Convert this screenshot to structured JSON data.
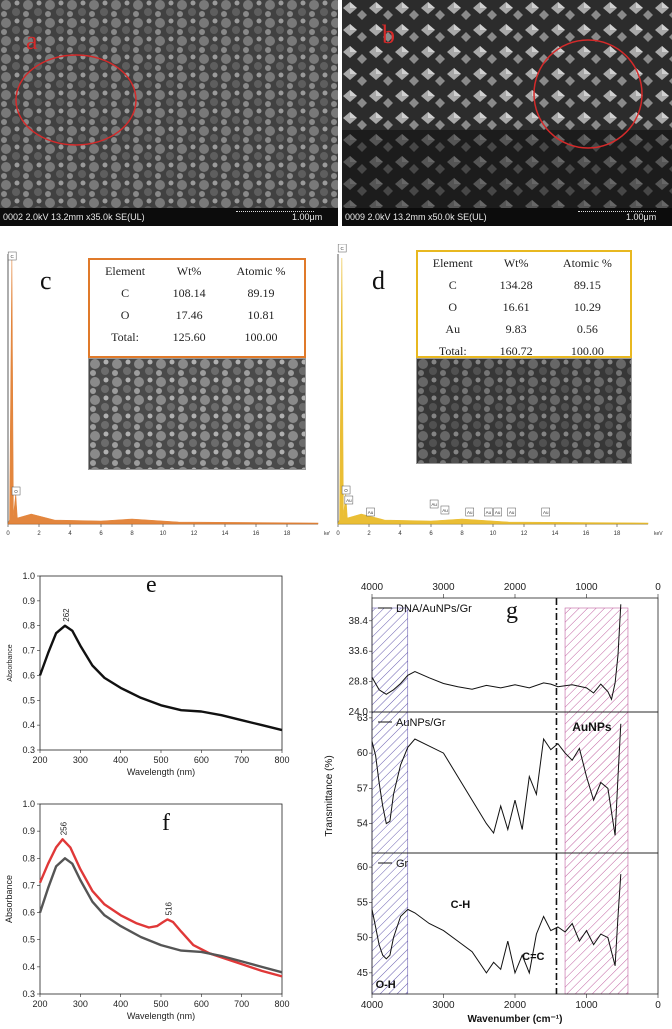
{
  "panels": {
    "a": {
      "letter": "a",
      "footer": "0002 2.0kV 13.2mm x35.0k SE(UL)",
      "scale": "1.00μm"
    },
    "b": {
      "letter": "b",
      "footer": "0009 2.0kV 13.2mm x50.0k SE(UL)",
      "scale": "1.00μm"
    },
    "c": {
      "letter": "c"
    },
    "d": {
      "letter": "d"
    },
    "e": {
      "letter": "e"
    },
    "f": {
      "letter": "f"
    },
    "g": {
      "letter": "g"
    }
  },
  "colors": {
    "orange": "#e07a2a",
    "gold": "#e8b820",
    "red": "#e03838",
    "dark": "#555555",
    "hatch_blue": "#6a5fb0",
    "hatch_pink": "#c060a0"
  },
  "eds_c": {
    "headers": [
      "Element",
      "Wt%",
      "Atomic %"
    ],
    "rows": [
      [
        "C",
        "108.14",
        "89.19"
      ],
      [
        "O",
        "17.46",
        "10.81"
      ],
      [
        "Total:",
        "125.60",
        "100.00"
      ]
    ],
    "peak_labels": [
      "C",
      "O"
    ],
    "x_ticks": [
      "0",
      "2",
      "4",
      "6",
      "8",
      "10",
      "12",
      "14",
      "16",
      "18"
    ],
    "x_unit": "keV"
  },
  "eds_d": {
    "headers": [
      "Element",
      "Wt%",
      "Atomic %"
    ],
    "rows": [
      [
        "C",
        "134.28",
        "89.15"
      ],
      [
        "O",
        "16.61",
        "10.29"
      ],
      [
        "Au",
        "9.83",
        "0.56"
      ],
      [
        "Total:",
        "160.72",
        "100.00"
      ]
    ],
    "peak_labels": [
      "C",
      "O",
      "Au",
      "Au",
      "Au",
      "Au",
      "Au",
      "Au",
      "Au",
      "Au",
      "Au"
    ],
    "x_ticks": [
      "0",
      "2",
      "4",
      "6",
      "8",
      "10",
      "12",
      "14",
      "16",
      "18"
    ],
    "x_unit": "keV"
  },
  "chart_data": [
    {
      "id": "e",
      "type": "line",
      "xlabel": "Wavelength (nm)",
      "ylabel": "Absorbance",
      "xlim": [
        200,
        800
      ],
      "ylim": [
        0.3,
        1.0
      ],
      "x_ticks": [
        200,
        300,
        400,
        500,
        600,
        700,
        800
      ],
      "y_ticks": [
        "0.3",
        "0.4",
        "0.5",
        "0.6",
        "0.7",
        "0.8",
        "0.9",
        "1.0"
      ],
      "peak_label": "262",
      "series": [
        {
          "color": "#111111",
          "x": [
            200,
            220,
            240,
            262,
            280,
            300,
            330,
            360,
            400,
            450,
            500,
            550,
            600,
            650,
            700,
            750,
            800
          ],
          "y": [
            0.6,
            0.69,
            0.77,
            0.8,
            0.78,
            0.72,
            0.64,
            0.59,
            0.55,
            0.51,
            0.48,
            0.46,
            0.455,
            0.44,
            0.42,
            0.4,
            0.38
          ]
        }
      ]
    },
    {
      "id": "f",
      "type": "line",
      "xlabel": "Wavelength (nm)",
      "ylabel": "Absorbance",
      "xlim": [
        200,
        800
      ],
      "ylim": [
        0.3,
        1.0
      ],
      "x_ticks": [
        200,
        300,
        400,
        500,
        600,
        700,
        800
      ],
      "y_ticks": [
        "0.3",
        "0.4",
        "0.5",
        "0.6",
        "0.7",
        "0.8",
        "0.9",
        "1.0"
      ],
      "peak_labels": [
        "256",
        "516"
      ],
      "series": [
        {
          "color": "#e03838",
          "x": [
            200,
            220,
            240,
            256,
            275,
            300,
            330,
            360,
            400,
            440,
            470,
            490,
            505,
            516,
            530,
            550,
            580,
            620,
            660,
            700,
            750,
            800
          ],
          "y": [
            0.71,
            0.78,
            0.84,
            0.87,
            0.84,
            0.76,
            0.68,
            0.63,
            0.59,
            0.56,
            0.545,
            0.55,
            0.565,
            0.575,
            0.565,
            0.53,
            0.48,
            0.45,
            0.43,
            0.41,
            0.385,
            0.365
          ]
        },
        {
          "color": "#555555",
          "x": [
            200,
            220,
            240,
            262,
            280,
            300,
            330,
            360,
            400,
            450,
            500,
            550,
            600,
            650,
            700,
            750,
            800
          ],
          "y": [
            0.6,
            0.69,
            0.77,
            0.8,
            0.78,
            0.72,
            0.64,
            0.59,
            0.55,
            0.51,
            0.48,
            0.46,
            0.455,
            0.44,
            0.42,
            0.4,
            0.38
          ]
        }
      ]
    },
    {
      "id": "g",
      "type": "line",
      "xlabel": "Wavenumber (cm⁻¹)",
      "ylabel": "Transmittance (%)",
      "xlim": [
        4000,
        0
      ],
      "x_ticks": [
        "4000",
        "3000",
        "2000",
        "1000",
        "0"
      ],
      "sub": [
        {
          "name": "DNA/AuNPs/Gr",
          "y_ticks": [
            "24.0",
            "28.8",
            "33.6",
            "38.4"
          ],
          "ylim": [
            24.0,
            42.0
          ],
          "x": [
            4000,
            3900,
            3800,
            3700,
            3600,
            3500,
            3400,
            3200,
            3000,
            2800,
            2600,
            2400,
            2200,
            2000,
            1800,
            1600,
            1500,
            1400,
            1200,
            1000,
            900,
            800,
            700,
            650,
            600,
            560,
            520
          ],
          "y": [
            29.5,
            27.5,
            26.8,
            27.5,
            28.5,
            29.8,
            30.4,
            29.4,
            28.5,
            28.0,
            27.6,
            28.2,
            27.8,
            28.3,
            27.8,
            28.6,
            28.4,
            28.0,
            28.3,
            27.8,
            27.0,
            28.4,
            27.2,
            26.0,
            28.6,
            33.0,
            41.0
          ]
        },
        {
          "name": "AuNPs/Gr",
          "y_ticks": [
            "54",
            "57",
            "60",
            "63"
          ],
          "ylim": [
            51.5,
            63.5
          ],
          "x": [
            4000,
            3950,
            3900,
            3850,
            3800,
            3750,
            3700,
            3600,
            3500,
            3400,
            3200,
            3000,
            2800,
            2600,
            2400,
            2300,
            2200,
            2100,
            2000,
            1900,
            1800,
            1700,
            1600,
            1500,
            1400,
            1300,
            1200,
            1100,
            1000,
            900,
            800,
            700,
            650,
            600,
            560,
            520
          ],
          "y": [
            61.0,
            59.8,
            57.5,
            55.5,
            54.0,
            54.2,
            56.5,
            59.0,
            60.5,
            61.2,
            60.6,
            60.0,
            58.0,
            56.0,
            54.0,
            53.2,
            55.5,
            53.5,
            56.0,
            53.5,
            58.0,
            56.5,
            61.2,
            60.3,
            60.8,
            60.0,
            59.4,
            60.4,
            58.0,
            56.0,
            57.5,
            57.0,
            55.0,
            53.0,
            58.0,
            62.5
          ]
        },
        {
          "name": "Gr",
          "y_ticks": [
            "45",
            "50",
            "55",
            "60"
          ],
          "ylim": [
            42.0,
            62.0
          ],
          "x": [
            4000,
            3950,
            3900,
            3850,
            3800,
            3750,
            3700,
            3600,
            3500,
            3400,
            3200,
            3000,
            2800,
            2600,
            2400,
            2300,
            2200,
            2100,
            2000,
            1900,
            1800,
            1700,
            1600,
            1500,
            1400,
            1300,
            1200,
            1100,
            1000,
            900,
            800,
            700,
            650,
            600,
            560,
            520
          ],
          "y": [
            54.0,
            51.5,
            49.0,
            47.5,
            47.0,
            47.5,
            50.0,
            53.0,
            54.0,
            53.5,
            52.0,
            51.0,
            49.5,
            48.0,
            45.0,
            46.5,
            45.5,
            49.5,
            45.0,
            47.5,
            45.0,
            50.5,
            53.0,
            51.0,
            51.5,
            50.8,
            52.0,
            49.5,
            51.0,
            49.0,
            50.5,
            50.0,
            48.0,
            46.0,
            53.0,
            59.0
          ]
        }
      ],
      "annotations": {
        "oh": "O-H",
        "ch": "C-H",
        "cc": "C=C",
        "au": "AuNPs"
      }
    }
  ]
}
